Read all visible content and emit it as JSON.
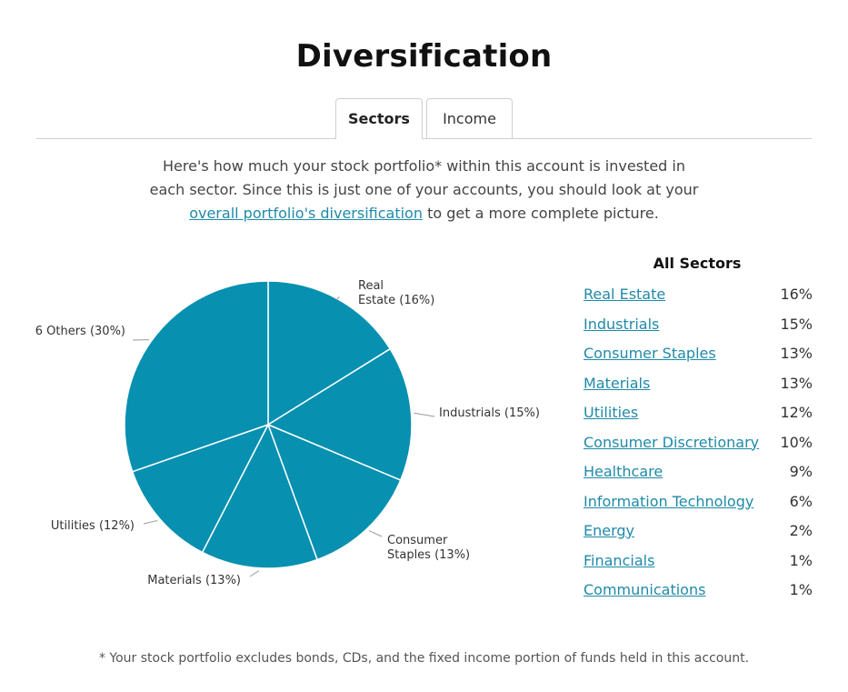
{
  "title": "Diversification",
  "tabs": [
    {
      "label": "Sectors",
      "active": true
    },
    {
      "label": "Income",
      "active": false
    }
  ],
  "intro": {
    "before": "Here's how much your stock portfolio* within this account is invested in each sector. Since this is just one of your accounts, you should look at your ",
    "link": "overall portfolio's diversification",
    "after": " to get a more complete picture."
  },
  "table": {
    "title": "All Sectors",
    "rows": [
      {
        "name": "Real Estate",
        "pct": "16%"
      },
      {
        "name": "Industrials",
        "pct": "15%"
      },
      {
        "name": "Consumer Staples",
        "pct": "13%"
      },
      {
        "name": "Materials",
        "pct": "13%"
      },
      {
        "name": "Utilities",
        "pct": "12%"
      },
      {
        "name": "Consumer Discretionary",
        "pct": "10%"
      },
      {
        "name": "Healthcare",
        "pct": "9%"
      },
      {
        "name": "Information Technology",
        "pct": "6%"
      },
      {
        "name": "Energy",
        "pct": "2%"
      },
      {
        "name": "Financials",
        "pct": "1%"
      },
      {
        "name": "Communications",
        "pct": "1%"
      }
    ]
  },
  "footnote": "* Your stock portfolio excludes bonds, CDs, and the fixed income portion of funds held in this account.",
  "chart_data": {
    "type": "pie",
    "categories": [
      "Real Estate",
      "Industrials",
      "Consumer Staples",
      "Materials",
      "Utilities",
      "6 Others"
    ],
    "values": [
      16,
      15,
      13,
      13,
      12,
      30
    ],
    "slice_labels": [
      [
        "Real",
        "Estate (16%)"
      ],
      [
        "Industrials (15%)"
      ],
      [
        "Consumer",
        "Staples (13%)"
      ],
      [
        "Materials (13%)"
      ],
      [
        "Utilities (12%)"
      ],
      [
        "6 Others (30%)"
      ]
    ],
    "color": "#0790b0",
    "stroke": "#ffffff",
    "link_color": "#1f8aa8"
  }
}
